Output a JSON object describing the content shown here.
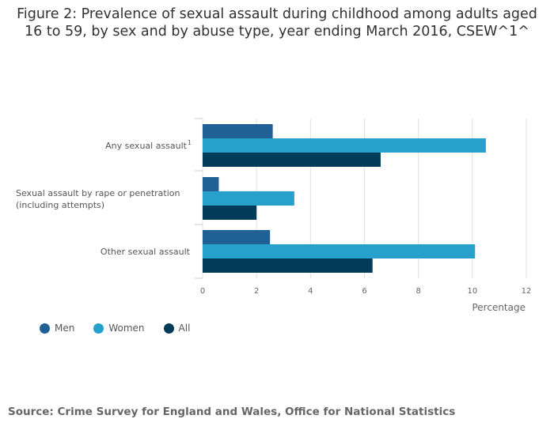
{
  "title_line1": "Figure 2: Prevalence of sexual assault during childhood among adults aged",
  "title_line2": "16 to 59, by sex and by abuse type, year ending March 2016, CSEW^1^",
  "source": "Source: Crime Survey for England and Wales, Office for National Statistics",
  "colors": {
    "men": "#206095",
    "women": "#27a0cc",
    "all": "#003c57"
  },
  "chart_data": {
    "type": "bar",
    "orientation": "horizontal",
    "categories": [
      {
        "lines": [
          "Any sexual assault"
        ],
        "sup": "1"
      },
      {
        "lines": [
          "Sexual assault by rape or penetration",
          "(including attempts)"
        ],
        "sup": ""
      },
      {
        "lines": [
          "Other sexual assault"
        ],
        "sup": ""
      }
    ],
    "series": [
      {
        "name": "Men",
        "values": [
          2.6,
          0.6,
          2.5
        ]
      },
      {
        "name": "Women",
        "values": [
          10.5,
          3.4,
          10.1
        ]
      },
      {
        "name": "All",
        "values": [
          6.6,
          2.0,
          6.3
        ]
      }
    ],
    "xlabel": "Percentage",
    "xlim": [
      0,
      12
    ],
    "xticks": [
      "0",
      "2",
      "4",
      "6",
      "8",
      "10",
      "12"
    ],
    "grid": true,
    "legend_position": "bottom-left"
  }
}
